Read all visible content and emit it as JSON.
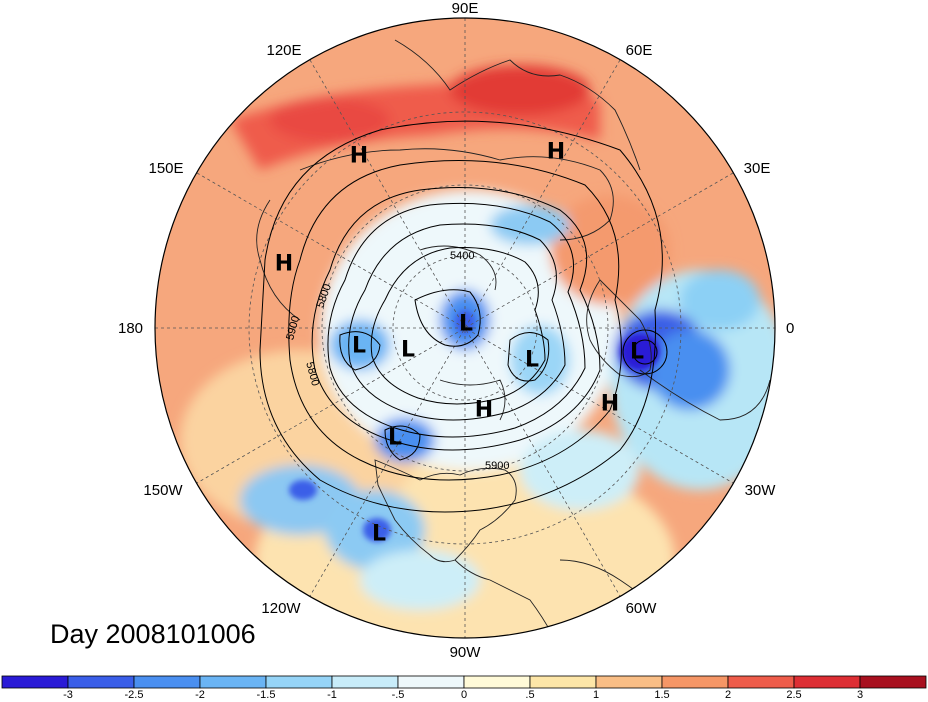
{
  "title": "Day 2008101006",
  "longitude_labels": [
    {
      "id": "lon-90e",
      "text": "90E"
    },
    {
      "id": "lon-120e",
      "text": "120E"
    },
    {
      "id": "lon-60e",
      "text": "60E"
    },
    {
      "id": "lon-150e",
      "text": "150E"
    },
    {
      "id": "lon-30e",
      "text": "30E"
    },
    {
      "id": "lon-180",
      "text": "180"
    },
    {
      "id": "lon-0",
      "text": "0"
    },
    {
      "id": "lon-150w",
      "text": "150W"
    },
    {
      "id": "lon-30w",
      "text": "30W"
    },
    {
      "id": "lon-120w",
      "text": "120W"
    },
    {
      "id": "lon-60w",
      "text": "60W"
    },
    {
      "id": "lon-90w",
      "text": "90W"
    }
  ],
  "contour_labels": [
    "5400",
    "5800",
    "5900",
    "5800",
    "5900"
  ],
  "pressure_systems": [
    "H",
    "H",
    "H",
    "H",
    "H",
    "L",
    "L",
    "L",
    "L",
    "L",
    "L",
    "L"
  ],
  "colorbar": {
    "colors": [
      "#2a1bd6",
      "#3a5ee8",
      "#4a8ff0",
      "#6ab4f4",
      "#96d4f7",
      "#c8ecf9",
      "#eef8fb",
      "#fffad8",
      "#fde6a8",
      "#f9be86",
      "#f59666",
      "#ee5c4a",
      "#dd2e34",
      "#a8101f"
    ],
    "ticks": [
      "-3",
      "-2.5",
      "-2",
      "-1.5",
      "-1",
      "-.5",
      "0",
      ".5",
      "1",
      "1.5",
      "2",
      "2.5",
      "3"
    ]
  },
  "colors": {
    "warm": "#f7a378",
    "hot": "#ef4e46",
    "cool": "#cdeef8",
    "cold": "#3c62e6"
  }
}
